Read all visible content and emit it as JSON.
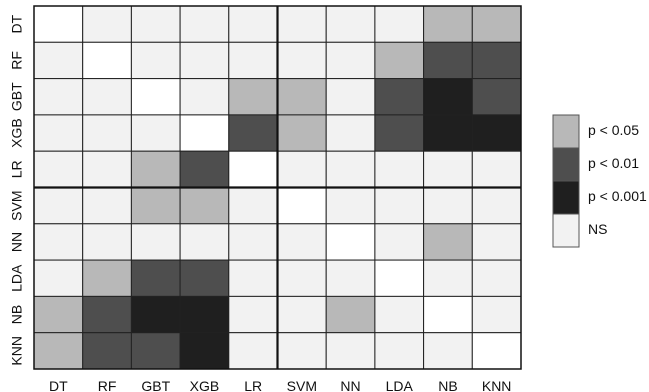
{
  "chart_data": {
    "type": "heatmap",
    "title": "",
    "xlabel": "",
    "ylabel": "",
    "categories": [
      "DT",
      "RF",
      "GBT",
      "XGB",
      "LR",
      "SVM",
      "NN",
      "LDA",
      "NB",
      "KNN"
    ],
    "levels": [
      {
        "code": "ns",
        "label": "NS",
        "color": "#f2f2f2"
      },
      {
        "code": "p05",
        "label": "p < 0.05",
        "color": "#b8b8b8"
      },
      {
        "code": "p01",
        "label": "p < 0.01",
        "color": "#4e4e4e"
      },
      {
        "code": "p001",
        "label": "p < 0.001",
        "color": "#1f1f1f"
      }
    ],
    "diagonal_color": "#ffffff",
    "matrix": [
      [
        "-",
        "ns",
        "ns",
        "ns",
        "ns",
        "ns",
        "ns",
        "ns",
        "p05",
        "p05"
      ],
      [
        "ns",
        "-",
        "ns",
        "ns",
        "ns",
        "ns",
        "ns",
        "p05",
        "p01",
        "p01"
      ],
      [
        "ns",
        "ns",
        "-",
        "ns",
        "p05",
        "p05",
        "ns",
        "p01",
        "p001",
        "p01"
      ],
      [
        "ns",
        "ns",
        "ns",
        "-",
        "p01",
        "p05",
        "ns",
        "p01",
        "p001",
        "p001"
      ],
      [
        "ns",
        "ns",
        "p05",
        "p01",
        "-",
        "ns",
        "ns",
        "ns",
        "ns",
        "ns"
      ],
      [
        "ns",
        "ns",
        "p05",
        "p05",
        "ns",
        "-",
        "ns",
        "ns",
        "ns",
        "ns"
      ],
      [
        "ns",
        "ns",
        "ns",
        "ns",
        "ns",
        "ns",
        "-",
        "ns",
        "p05",
        "ns"
      ],
      [
        "ns",
        "p05",
        "p01",
        "p01",
        "ns",
        "ns",
        "ns",
        "-",
        "ns",
        "ns"
      ],
      [
        "p05",
        "p01",
        "p001",
        "p001",
        "ns",
        "ns",
        "p05",
        "ns",
        "-",
        "ns"
      ],
      [
        "p05",
        "p01",
        "p01",
        "p001",
        "ns",
        "ns",
        "ns",
        "ns",
        "ns",
        "-"
      ]
    ],
    "group_divider_after": "LR",
    "legend_placement": "right",
    "grid": true
  }
}
